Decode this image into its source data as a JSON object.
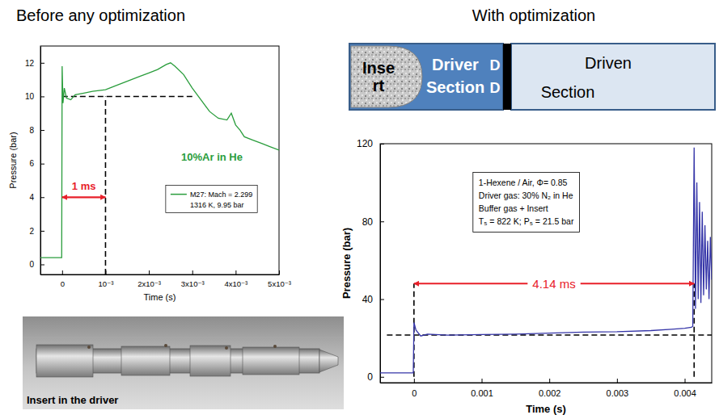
{
  "chart_data": [
    {
      "type": "line",
      "title": "Before any optimization",
      "x_label": "Time (s)",
      "y_label": "Pressure (bar)",
      "xlim": [
        -0.0005,
        0.005
      ],
      "xticks": [
        0,
        {
          "value": 0.001,
          "label": "10⁻³"
        },
        {
          "value": 0.002,
          "label": "2x10⁻³"
        },
        {
          "value": 0.003,
          "label": "3x10⁻³"
        },
        {
          "value": 0.004,
          "label": "4x10⁻³"
        },
        {
          "value": 0.005,
          "label": "5x10⁻³"
        }
      ],
      "ylim": [
        -0.6,
        13
      ],
      "yticks": [
        0,
        2,
        4,
        6,
        8,
        10,
        12
      ],
      "grid": false,
      "legend": "lower right",
      "series": [
        {
          "name": "M27: Mach = 2.299",
          "note": "1316 K, 9.95 bar",
          "color": "#2a9d3c",
          "line_style": "solid",
          "x": [
            -0.0005,
            -1e-05,
            0,
            2e-05,
            5e-05,
            0.0001,
            0.0002,
            0.0003,
            0.0005,
            0.0007,
            0.001,
            0.0012,
            0.0015,
            0.0018,
            0.002,
            0.0022,
            0.0024,
            0.0025,
            0.0026,
            0.0028,
            0.003,
            0.0032,
            0.0034,
            0.0036,
            0.0038,
            0.0039,
            0.004,
            0.0041,
            0.0042,
            0.0044,
            0.0046,
            0.0048,
            0.005
          ],
          "values": [
            0.4,
            0.4,
            11.8,
            9.6,
            10.5,
            9.9,
            9.8,
            10.1,
            10.2,
            10.3,
            10.4,
            10.6,
            10.9,
            11.2,
            11.4,
            11.6,
            11.9,
            12.0,
            11.8,
            11.3,
            10.5,
            9.8,
            9.1,
            8.7,
            8.6,
            9.0,
            8.3,
            8.0,
            7.6,
            7.4,
            7.2,
            7.0,
            6.8
          ]
        }
      ],
      "annotations": [
        {
          "text": "10%Ar in He",
          "color": "#2a9d3c"
        }
      ],
      "reference_lines": [
        {
          "y": 10,
          "x": [
            0,
            0.003
          ]
        },
        {
          "x": 0.001,
          "y": [
            -0.6,
            10
          ]
        }
      ],
      "arrow": {
        "from": 0,
        "to": 0.001,
        "y": 4,
        "label": "1 ms",
        "color": "#e8202a"
      }
    },
    {
      "type": "line",
      "title": "With optimization",
      "x_label": "Time (s)",
      "y_label": "Pressure (bar)",
      "xlim": [
        -0.0005,
        0.0044
      ],
      "xticks": [
        0,
        0.001,
        0.002,
        0.003,
        0.004
      ],
      "ylim": [
        -3,
        120
      ],
      "yticks": [
        0,
        40,
        80,
        120
      ],
      "grid": false,
      "series": [
        {
          "color": "#3535a8",
          "line_style": "solid",
          "x": [
            -0.0005,
            -1e-05,
            0,
            3e-05,
            0.0001,
            0.0002,
            0.0005,
            0.001,
            0.0015,
            0.002,
            0.0025,
            0.003,
            0.0035,
            0.0038,
            0.004,
            0.0041,
            0.00412,
            0.00414,
            0.00416,
            0.00418,
            0.0042,
            0.00422,
            0.00424,
            0.00426,
            0.00428,
            0.0043,
            0.00432,
            0.00434,
            0.00436,
            0.00438,
            0.0044
          ],
          "values": [
            2,
            2,
            28,
            24,
            21,
            22,
            21.5,
            21.8,
            22,
            22.5,
            23,
            23.2,
            23.8,
            24.5,
            25,
            25.5,
            26,
            118,
            35,
            100,
            40,
            90,
            38,
            85,
            42,
            78,
            45,
            70,
            40,
            72,
            50
          ]
        }
      ],
      "info_box": [
        "1-Hexene / Air, Φ= 0.85",
        "Driver gas: 30% N₂ in He",
        "Buffer gas + Insert",
        "T₅ = 822 K; P₅ = 21.5 bar"
      ],
      "reference_lines": [
        {
          "y": 21.5,
          "x": [
            -0.0004,
            0.0044
          ]
        },
        {
          "x": 0,
          "y": [
            0,
            48
          ]
        },
        {
          "x": 0.00414,
          "y": [
            0,
            48
          ]
        }
      ],
      "arrow": {
        "from": 0,
        "to": 0.00414,
        "y": 48,
        "label": "4.14 ms",
        "color": "#e8202a"
      }
    }
  ],
  "diagram": {
    "insert": "Insert",
    "driver": "Driver Section",
    "diaphragm": [
      "D",
      "D"
    ],
    "driven": "Driven Section"
  },
  "photo": {
    "caption": "Insert in the driver"
  }
}
